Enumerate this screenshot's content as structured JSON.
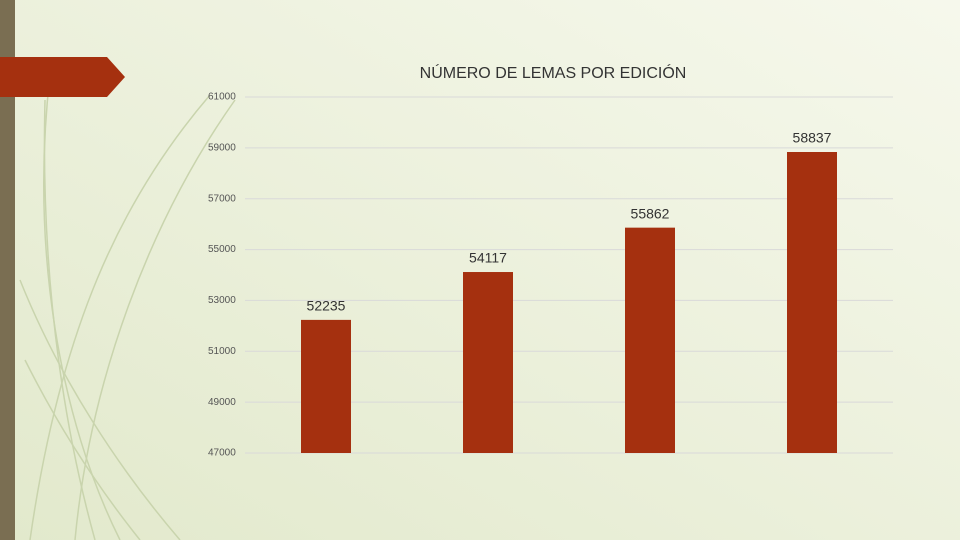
{
  "chart_data": {
    "type": "bar",
    "title": "NÚMERO DE LEMAS POR EDICIÓN",
    "categories": [
      null,
      null,
      null,
      null
    ],
    "values": [
      52235,
      54117,
      55862,
      58837
    ],
    "color": "#a5300f",
    "ylim": [
      47000,
      61000
    ],
    "yticks": [
      47000,
      49000,
      51000,
      53000,
      55000,
      57000,
      59000,
      61000
    ],
    "grid": true
  }
}
